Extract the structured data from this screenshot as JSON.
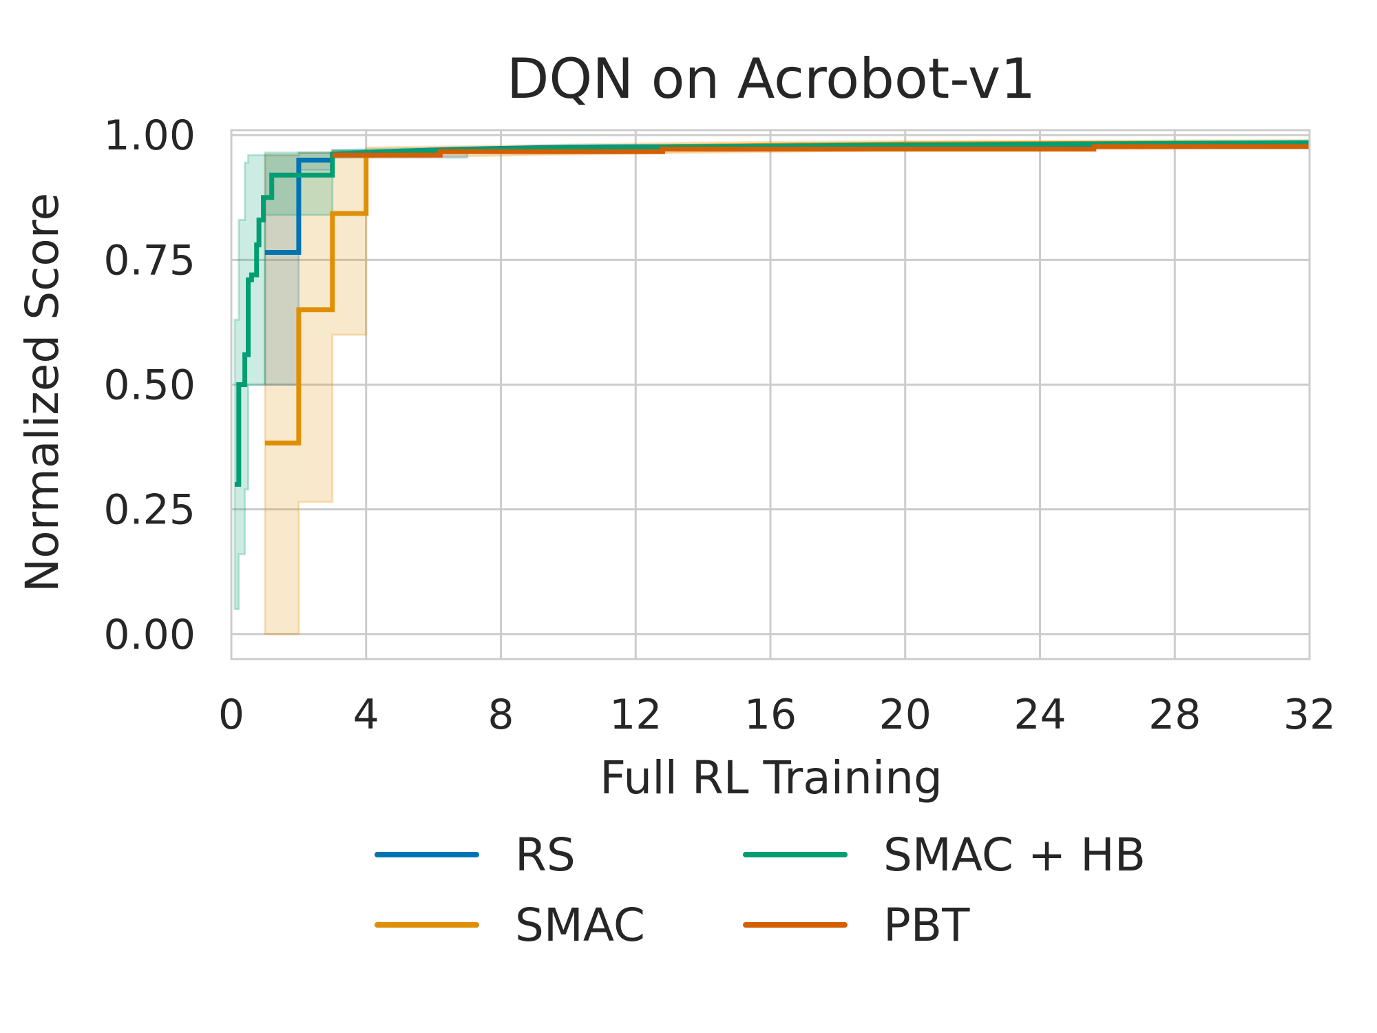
{
  "chart_data": {
    "type": "line",
    "title": "DQN on Acrobot-v1",
    "xlabel": "Full RL Training",
    "ylabel": "Normalized Score",
    "xlim": [
      0,
      32
    ],
    "ylim": [
      -0.05,
      1.01
    ],
    "x_ticks": [
      0,
      4,
      8,
      12,
      16,
      20,
      24,
      28,
      32
    ],
    "x_tick_labels": [
      "0",
      "4",
      "8",
      "12",
      "16",
      "20",
      "24",
      "28",
      "32"
    ],
    "y_ticks": [
      0.0,
      0.25,
      0.5,
      0.75,
      1.0
    ],
    "y_tick_labels": [
      "0.00",
      "0.25",
      "0.50",
      "0.75",
      "1.00"
    ],
    "grid": true,
    "legend_position": "bottom-center",
    "series": [
      {
        "name": "RS",
        "color": "#0173b2",
        "x": [
          1.0,
          2.0,
          2.0,
          3.0,
          3.0,
          4.0,
          5.0,
          7.0,
          10.0,
          16.0,
          20.0,
          32.0
        ],
        "y": [
          0.765,
          0.765,
          0.95,
          0.95,
          0.962,
          0.965,
          0.968,
          0.972,
          0.976,
          0.978,
          0.98,
          0.983
        ],
        "band_x": [
          1.0,
          2.0,
          2.0,
          3.0,
          3.0,
          7.0,
          7.0
        ],
        "band_lower": [
          0.5,
          0.5,
          0.93,
          0.93,
          0.955,
          0.955,
          0.955
        ],
        "band_upper": [
          0.96,
          0.96,
          0.965,
          0.965,
          0.97,
          0.975,
          0.975
        ]
      },
      {
        "name": "SMAC",
        "color": "#de8f05",
        "x": [
          1.0,
          2.0,
          2.0,
          3.0,
          3.0,
          4.0,
          4.0,
          8.0,
          14.0,
          20.0,
          32.0
        ],
        "y": [
          0.383,
          0.383,
          0.65,
          0.65,
          0.843,
          0.843,
          0.962,
          0.972,
          0.978,
          0.982,
          0.985
        ],
        "band_x": [
          1.0,
          2.0,
          2.0,
          3.0,
          3.0,
          4.0,
          4.0,
          14.0,
          20.0,
          32.0
        ],
        "band_lower": [
          0.0,
          0.0,
          0.265,
          0.265,
          0.6,
          0.6,
          0.955,
          0.965,
          0.97,
          0.975
        ],
        "band_upper": [
          0.96,
          0.96,
          0.965,
          0.965,
          0.968,
          0.968,
          0.975,
          0.985,
          0.988,
          0.99
        ]
      },
      {
        "name": "SMAC + HB",
        "color": "#029e73",
        "x": [
          0.1,
          0.22,
          0.22,
          0.4,
          0.4,
          0.5,
          0.5,
          0.6,
          0.6,
          0.75,
          0.75,
          0.82,
          0.82,
          0.95,
          0.95,
          1.2,
          1.2,
          3.0,
          3.0,
          5.0,
          10.0,
          20.0,
          32.0
        ],
        "y": [
          0.3,
          0.3,
          0.5,
          0.5,
          0.56,
          0.56,
          0.71,
          0.71,
          0.72,
          0.72,
          0.78,
          0.78,
          0.83,
          0.83,
          0.875,
          0.875,
          0.92,
          0.92,
          0.962,
          0.968,
          0.975,
          0.98,
          0.985
        ],
        "band_x": [
          0.1,
          0.22,
          0.22,
          0.4,
          0.4,
          0.5,
          0.5,
          1.0,
          1.0,
          3.0,
          3.0,
          6.0
        ],
        "band_lower": [
          0.05,
          0.05,
          0.16,
          0.16,
          0.29,
          0.29,
          0.5,
          0.5,
          0.84,
          0.84,
          0.955,
          0.96
        ],
        "band_upper": [
          0.63,
          0.63,
          0.83,
          0.83,
          0.945,
          0.945,
          0.96,
          0.96,
          0.965,
          0.965,
          0.97,
          0.97
        ]
      },
      {
        "name": "PBT",
        "color": "#d55e00",
        "x": [
          3.0,
          6.2,
          6.2,
          12.8,
          12.8,
          25.6,
          25.6,
          32.0
        ],
        "y": [
          0.96,
          0.96,
          0.967,
          0.967,
          0.972,
          0.972,
          0.977,
          0.977
        ]
      }
    ]
  }
}
